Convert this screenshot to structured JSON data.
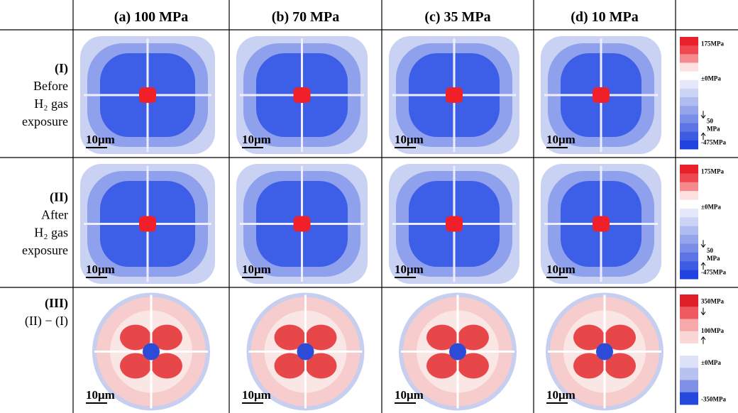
{
  "header": {
    "columns": [
      "(a) 100 MPa",
      "(b) 70 MPa",
      "(c) 35 MPa",
      "(d) 10 MPa"
    ]
  },
  "rows": [
    {
      "label": "(I)",
      "lines": [
        "Before",
        "H₂ gas",
        "exposure"
      ],
      "scale_bars": [
        "10μm",
        "10μm",
        "10μm",
        "10μm"
      ],
      "colorbar": [
        "175MPa",
        "±0MPa",
        "50",
        "MPa",
        "-475MPa"
      ]
    },
    {
      "label": "(II)",
      "lines": [
        "After",
        "H₂ gas",
        "exposure"
      ],
      "scale_bars": [
        "10μm",
        "10μm",
        "10μm",
        "10μm"
      ],
      "colorbar": [
        "175MPa",
        "±0MPa",
        "50",
        "MPa",
        "-475MPa"
      ]
    },
    {
      "label": "(III)",
      "lines": [
        "(II) − (I)"
      ],
      "scale_bars": [
        "10μm",
        "10μm",
        "10μm",
        "10μm"
      ],
      "colorbar": [
        "350MPa",
        "100MPa",
        "±0MPa",
        "-350MPa"
      ]
    }
  ]
}
